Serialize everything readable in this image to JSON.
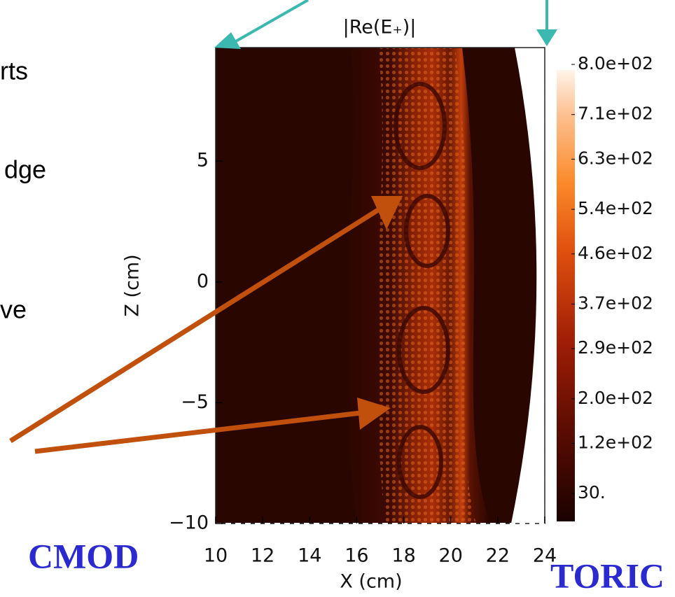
{
  "slide": {
    "left_text": [
      "rts",
      "dge",
      "ve"
    ],
    "left_tag": "CMOD",
    "right_tag": "TORIC"
  },
  "chart_data": {
    "type": "heatmap",
    "title": "|Re(E₊)|",
    "x_label": "X (cm)",
    "y_label": "Z (cm)",
    "xlim": [
      10,
      24
    ],
    "xticks": [
      10,
      12,
      14,
      16,
      18,
      20,
      22,
      24
    ],
    "ylim": [
      -10,
      9.7
    ],
    "yticks": [
      {
        "value": -10,
        "label": "−10"
      },
      {
        "value": -5,
        "label": "−5"
      },
      0,
      5
    ],
    "clim": [
      -20,
      790
    ],
    "cticks": [
      {
        "value": 30,
        "label": "30."
      },
      {
        "value": 120,
        "label": "1.2e+02"
      },
      {
        "value": 200,
        "label": "2.0e+02"
      },
      {
        "value": 290,
        "label": "2.9e+02"
      },
      {
        "value": 370,
        "label": "3.7e+02"
      },
      {
        "value": 460,
        "label": "4.6e+02"
      },
      {
        "value": 540,
        "label": "5.4e+02"
      },
      {
        "value": 630,
        "label": "6.3e+02"
      },
      {
        "value": 710,
        "label": "7.1e+02"
      },
      {
        "value": 800,
        "label": "8.0e+02"
      }
    ]
  }
}
